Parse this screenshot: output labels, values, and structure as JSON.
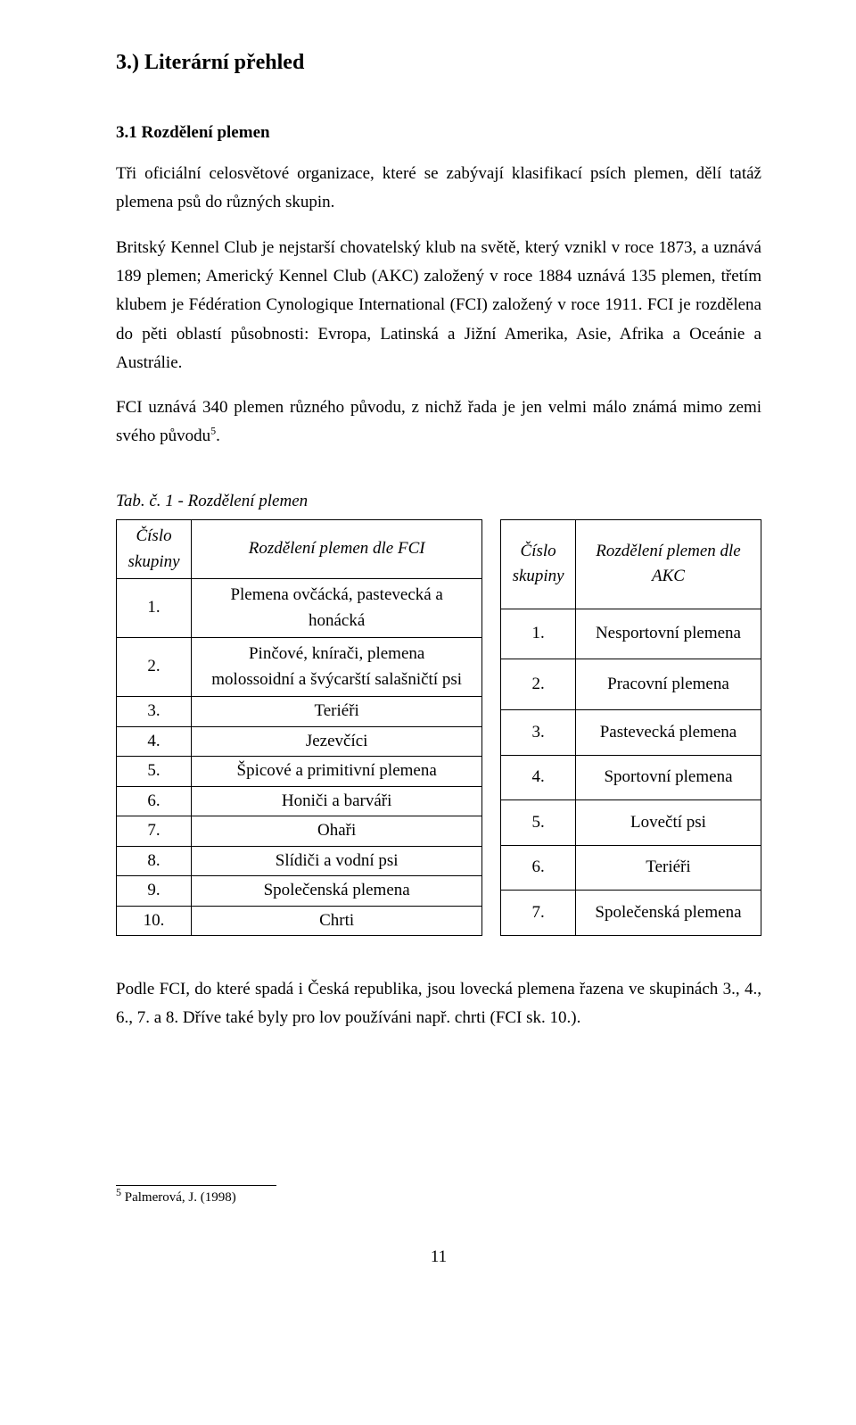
{
  "heading1": "3.) Literární přehled",
  "heading2": "3.1 Rozdělení plemen",
  "para1": "Tři oficiální celosvětové organizace, které se zabývají klasifikací psích plemen, dělí tatáž plemena psů do různých skupin.",
  "para2": "Britský Kennel Club je nejstarší chovatelský klub na světě, který vznikl v roce 1873, a uznává 189 plemen; Americký Kennel Club (AKC) založený v roce 1884 uznává 135 plemen, třetím klubem je Fédération Cynologique International (FCI) založený v roce 1911. FCI je rozdělena do pěti oblastí působnosti: Evropa, Latinská a Jižní Amerika, Asie, Afrika a Oceánie a Austrálie.",
  "para3_pre": "FCI uznává 340 plemen různého původu, z nichž řada je jen velmi málo známá mimo zemi svého původu",
  "para3_sup": "5",
  "para3_post": ".",
  "table_caption": "Tab. č. 1 - Rozdělení plemen",
  "left": {
    "header_col1_line1": "Číslo",
    "header_col1_line2": "skupiny",
    "header_col2": "Rozdělení plemen dle FCI",
    "rows": [
      {
        "num": "1.",
        "text_line1": "Plemena ovčácká, pastevecká a",
        "text_line2": "honácká"
      },
      {
        "num": "2.",
        "text_line1": "Pinčové, knírači, plemena",
        "text_line2": "molossoidní a švýcarští salašničtí psi"
      },
      {
        "num": "3.",
        "text": "Teriéři"
      },
      {
        "num": "4.",
        "text": "Jezevčíci"
      },
      {
        "num": "5.",
        "text": "Špicové a primitivní plemena"
      },
      {
        "num": "6.",
        "text": "Honiči a barváři"
      },
      {
        "num": "7.",
        "text": "Ohaři"
      },
      {
        "num": "8.",
        "text": "Slídiči a vodní psi"
      },
      {
        "num": "9.",
        "text": "Společenská plemena"
      },
      {
        "num": "10.",
        "text": "Chrti"
      }
    ]
  },
  "right": {
    "header_col1_line1": "Číslo",
    "header_col1_line2": "skupiny",
    "header_col2_line1": "Rozdělení plemen dle",
    "header_col2_line2": "AKC",
    "rows": [
      {
        "num": "1.",
        "text": "Nesportovní plemena"
      },
      {
        "num": "2.",
        "text": "Pracovní plemena"
      },
      {
        "num": "3.",
        "text": "Pastevecká plemena"
      },
      {
        "num": "4.",
        "text": "Sportovní plemena"
      },
      {
        "num": "5.",
        "text": "Lovečtí psi"
      },
      {
        "num": "6.",
        "text": "Teriéři"
      },
      {
        "num": "7.",
        "text": "Společenská plemena"
      }
    ]
  },
  "para4": "Podle FCI, do které spadá i Česká republika, jsou lovecká plemena řazena ve skupinách 3., 4., 6., 7. a 8. Dříve také byly pro lov používáni např. chrti (FCI sk. 10.).",
  "footnote_sup": "5",
  "footnote_text": " Palmerová, J. (1998)",
  "page_number": "11"
}
